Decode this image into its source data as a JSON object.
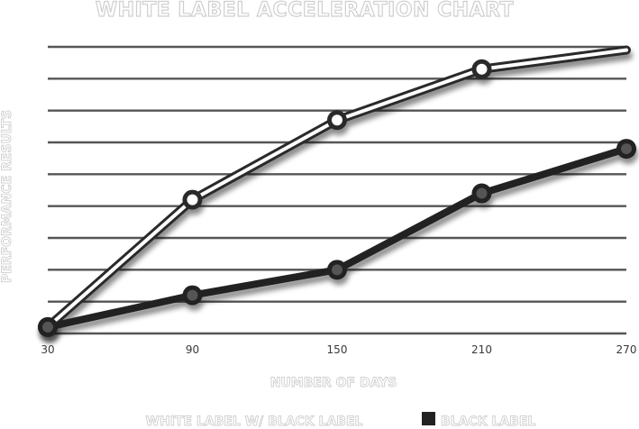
{
  "chart_data": {
    "type": "line",
    "title": "WHITE LABEL ACCELERATION CHART",
    "xlabel": "NUMBER OF DAYS",
    "ylabel": "PERFORMANCE RESULTS",
    "x": [
      30,
      90,
      150,
      210,
      270
    ],
    "xticks": [
      "30",
      "90",
      "150",
      "210",
      "270"
    ],
    "xlim": [
      30,
      270
    ],
    "ylim": [
      0,
      9
    ],
    "grid": true,
    "legend_position": "bottom",
    "series": [
      {
        "name": "WHITE LABEL W/ BLACK LABEL",
        "values": [
          0.2,
          4.2,
          6.7,
          8.3,
          8.9
        ],
        "marker_style": "hollow",
        "color": "#ffffff"
      },
      {
        "name": "BLACK LABEL",
        "values": [
          0.2,
          1.2,
          2.0,
          4.4,
          5.8
        ],
        "marker_style": "filled",
        "color": "#222222"
      }
    ]
  }
}
